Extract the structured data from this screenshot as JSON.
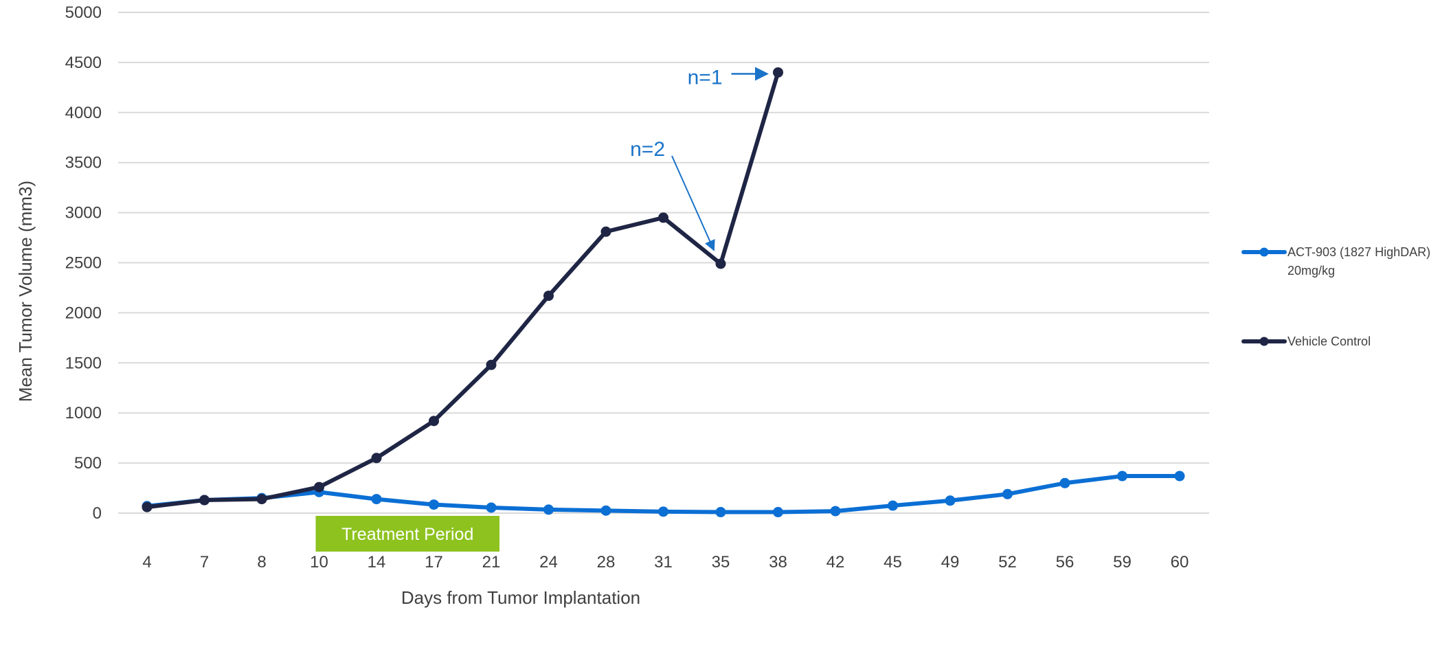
{
  "chart_data": {
    "type": "line",
    "title": "",
    "xlabel": "Days from Tumor Implantation",
    "ylabel": "Mean Tumor Volume (mm3)",
    "categories": [
      "4",
      "7",
      "8",
      "10",
      "14",
      "17",
      "21",
      "24",
      "28",
      "31",
      "35",
      "38",
      "42",
      "45",
      "49",
      "52",
      "56",
      "59",
      "60"
    ],
    "ylim": [
      0,
      5000
    ],
    "yticks": [
      0,
      500,
      1000,
      1500,
      2000,
      2500,
      3000,
      3500,
      4000,
      4500,
      5000
    ],
    "grid": "horizontal",
    "legend_position": "right",
    "series": [
      {
        "name": "ACT-903 (1827 HighDAR) 20mg/kg",
        "name_lines": [
          "ACT-903 (1827 HighDAR)",
          "20mg/kg"
        ],
        "color": "#0b6fd4",
        "values": [
          70,
          130,
          150,
          210,
          140,
          85,
          55,
          35,
          25,
          15,
          10,
          10,
          20,
          75,
          125,
          190,
          300,
          370,
          370
        ]
      },
      {
        "name": "Vehicle Control",
        "name_lines": [
          "Vehicle Control"
        ],
        "color": "#1f2544",
        "values": [
          60,
          130,
          140,
          260,
          550,
          920,
          1480,
          2170,
          2810,
          2950,
          2490,
          4400,
          null,
          null,
          null,
          null,
          null,
          null,
          null
        ]
      }
    ],
    "annotations": [
      {
        "text": "n=1",
        "x": "38",
        "y": 4400,
        "color": "#1a73c9"
      },
      {
        "text": "n=2",
        "x": "35",
        "y": 2490,
        "color": "#1a73c9"
      }
    ],
    "band": {
      "label": "Treatment Period",
      "start": "10",
      "end": "21",
      "color": "#8dc21f"
    }
  }
}
